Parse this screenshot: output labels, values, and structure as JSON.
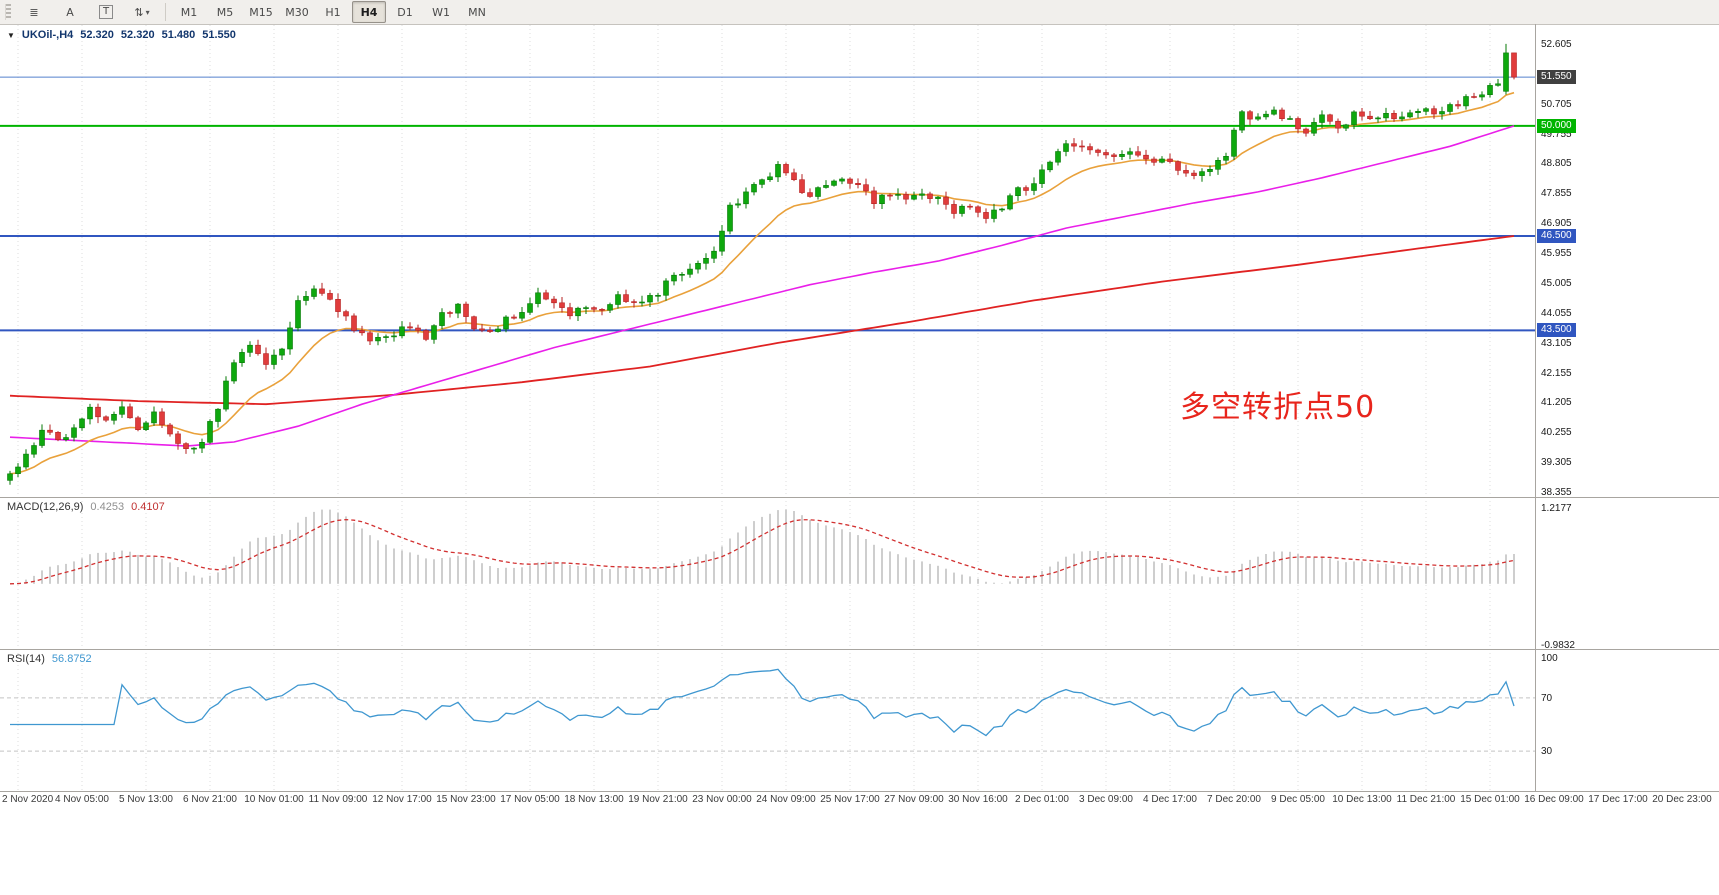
{
  "toolbar": {
    "tools": [
      {
        "id": "chart-windows",
        "glyph": "≣"
      },
      {
        "id": "arrow-tool",
        "glyph": "A"
      },
      {
        "id": "text-tool",
        "glyph": "T",
        "boxed": true
      },
      {
        "id": "indicators-menu",
        "glyph": "⇅",
        "caret": "▾"
      }
    ],
    "timeframes": [
      {
        "label": "M1",
        "active": false
      },
      {
        "label": "M5",
        "active": false
      },
      {
        "label": "M15",
        "active": false
      },
      {
        "label": "M30",
        "active": false
      },
      {
        "label": "H1",
        "active": false
      },
      {
        "label": "H4",
        "active": true
      },
      {
        "label": "D1",
        "active": false
      },
      {
        "label": "W1",
        "active": false
      },
      {
        "label": "MN",
        "active": false
      }
    ]
  },
  "quote_header": {
    "collapse_icon": "▼",
    "symbol": "UKOil-,H4",
    "open": "52.320",
    "high": "52.320",
    "low": "51.480",
    "close": "51.550"
  },
  "annotation": {
    "text": "多空转折点50",
    "color": "#e8251c"
  },
  "price_scale": {
    "gridline_labels": [
      "52.605",
      "50.705",
      "49.755",
      "48.805",
      "47.855",
      "46.905",
      "45.955",
      "45.005",
      "44.055",
      "43.105",
      "42.155",
      "41.205",
      "40.255",
      "39.305",
      "38.355"
    ],
    "price_box": {
      "name": "price-box-current",
      "value": "51.550",
      "price": 51.55,
      "bg": "#404040"
    },
    "level_boxes": [
      {
        "name": "level-box-50",
        "value": "50.000",
        "price": 50.0,
        "bg": "#00b400"
      },
      {
        "name": "level-box-46-5",
        "value": "46.500",
        "price": 46.5,
        "bg": "#3056c0"
      },
      {
        "name": "level-box-43-5",
        "value": "43.500",
        "price": 43.5,
        "bg": "#3056c0"
      }
    ]
  },
  "chart_data": {
    "type": "candlestick",
    "symbol": "UKOil-",
    "timeframe": "H4",
    "title": "UKOil-,H4 52.320 52.320 51.480 51.550",
    "last_quote": {
      "open": 52.32,
      "high": 52.32,
      "low": 51.48,
      "close": 51.55
    },
    "y_axis": {
      "min": 38.2,
      "max": 53.24,
      "grid_step": 0.95,
      "gridlines": [
        52.605,
        51.655,
        50.705,
        49.755,
        48.805,
        47.855,
        46.905,
        45.955,
        45.005,
        44.055,
        43.105,
        42.155,
        41.205,
        40.255,
        39.305,
        38.355
      ]
    },
    "levels": [
      {
        "price": 51.55,
        "color": "#5580cd",
        "role": "current-price-line"
      },
      {
        "price": 50.0,
        "color": "#00b400",
        "role": "horizontal-line"
      },
      {
        "price": 46.5,
        "color": "#3056c0",
        "role": "horizontal-line"
      },
      {
        "price": 43.5,
        "color": "#3056c0",
        "role": "horizontal-line"
      }
    ],
    "bars_total": 189,
    "price_anchors": [
      [
        0,
        38.85
      ],
      [
        2,
        39.55
      ],
      [
        4,
        40.25
      ],
      [
        6,
        40.0
      ],
      [
        8,
        40.45
      ],
      [
        10,
        40.95
      ],
      [
        12,
        40.55
      ],
      [
        14,
        41.05
      ],
      [
        16,
        40.35
      ],
      [
        18,
        40.95
      ],
      [
        20,
        40.15
      ],
      [
        22,
        39.6
      ],
      [
        24,
        39.85
      ],
      [
        26,
        41.1
      ],
      [
        28,
        42.45
      ],
      [
        30,
        43.0
      ],
      [
        32,
        42.45
      ],
      [
        34,
        42.95
      ],
      [
        36,
        44.35
      ],
      [
        38,
        44.95
      ],
      [
        40,
        44.55
      ],
      [
        42,
        43.85
      ],
      [
        44,
        43.35
      ],
      [
        46,
        43.15
      ],
      [
        48,
        43.45
      ],
      [
        50,
        43.6
      ],
      [
        52,
        43.3
      ],
      [
        54,
        43.95
      ],
      [
        56,
        44.25
      ],
      [
        58,
        43.55
      ],
      [
        60,
        43.45
      ],
      [
        62,
        43.85
      ],
      [
        64,
        44.15
      ],
      [
        66,
        44.75
      ],
      [
        68,
        44.25
      ],
      [
        70,
        43.95
      ],
      [
        72,
        44.3
      ],
      [
        74,
        44.15
      ],
      [
        76,
        44.55
      ],
      [
        78,
        44.35
      ],
      [
        80,
        44.55
      ],
      [
        82,
        44.95
      ],
      [
        84,
        45.35
      ],
      [
        86,
        45.65
      ],
      [
        88,
        46.05
      ],
      [
        90,
        47.35
      ],
      [
        92,
        47.85
      ],
      [
        94,
        48.25
      ],
      [
        96,
        48.75
      ],
      [
        98,
        48.25
      ],
      [
        100,
        47.7
      ],
      [
        102,
        48.1
      ],
      [
        104,
        48.4
      ],
      [
        106,
        48.0
      ],
      [
        108,
        47.65
      ],
      [
        110,
        47.85
      ],
      [
        112,
        47.6
      ],
      [
        114,
        47.9
      ],
      [
        116,
        47.7
      ],
      [
        118,
        47.3
      ],
      [
        120,
        47.55
      ],
      [
        122,
        46.95
      ],
      [
        124,
        47.45
      ],
      [
        126,
        47.95
      ],
      [
        128,
        48.15
      ],
      [
        130,
        48.9
      ],
      [
        132,
        49.55
      ],
      [
        134,
        49.25
      ],
      [
        136,
        49.05
      ],
      [
        138,
        48.95
      ],
      [
        140,
        49.25
      ],
      [
        142,
        48.85
      ],
      [
        144,
        49.05
      ],
      [
        146,
        48.65
      ],
      [
        148,
        48.35
      ],
      [
        150,
        48.65
      ],
      [
        152,
        49.05
      ],
      [
        154,
        50.45
      ],
      [
        156,
        50.15
      ],
      [
        158,
        50.45
      ],
      [
        160,
        50.1
      ],
      [
        162,
        49.85
      ],
      [
        164,
        50.25
      ],
      [
        166,
        49.95
      ],
      [
        168,
        50.35
      ],
      [
        170,
        50.15
      ],
      [
        172,
        50.45
      ],
      [
        174,
        50.25
      ],
      [
        176,
        50.55
      ],
      [
        178,
        50.3
      ],
      [
        180,
        50.55
      ],
      [
        182,
        50.85
      ],
      [
        184,
        51.05
      ],
      [
        186,
        51.3
      ],
      [
        187,
        51.05
      ],
      [
        188,
        51.55
      ]
    ],
    "moving_averages": {
      "fast": {
        "type": "ema",
        "period": 14,
        "color": "#e9a13b"
      },
      "medium": {
        "color": "#e91fe9",
        "anchors": [
          [
            0,
            40.1
          ],
          [
            8,
            40.0
          ],
          [
            16,
            39.9
          ],
          [
            22,
            39.82
          ],
          [
            28,
            39.95
          ],
          [
            36,
            40.45
          ],
          [
            44,
            41.15
          ],
          [
            52,
            41.75
          ],
          [
            60,
            42.35
          ],
          [
            68,
            42.95
          ],
          [
            76,
            43.45
          ],
          [
            84,
            43.95
          ],
          [
            92,
            44.45
          ],
          [
            100,
            44.95
          ],
          [
            108,
            45.35
          ],
          [
            116,
            45.7
          ],
          [
            124,
            46.2
          ],
          [
            132,
            46.75
          ],
          [
            140,
            47.15
          ],
          [
            148,
            47.55
          ],
          [
            156,
            47.9
          ],
          [
            164,
            48.35
          ],
          [
            172,
            48.85
          ],
          [
            180,
            49.35
          ],
          [
            188,
            50.0
          ]
        ]
      },
      "slow": {
        "color": "#e02222",
        "anchors": [
          [
            0,
            41.42
          ],
          [
            16,
            41.25
          ],
          [
            32,
            41.15
          ],
          [
            48,
            41.45
          ],
          [
            64,
            41.85
          ],
          [
            80,
            42.35
          ],
          [
            96,
            43.1
          ],
          [
            112,
            43.75
          ],
          [
            128,
            44.45
          ],
          [
            144,
            45.05
          ],
          [
            160,
            45.55
          ],
          [
            176,
            46.1
          ],
          [
            188,
            46.5
          ]
        ]
      }
    },
    "macd": {
      "label": "MACD(12,26,9)",
      "values": [
        0.4253,
        0.4107
      ],
      "values_text": [
        "0.4253",
        "0.4107"
      ],
      "fast": 12,
      "slow": 26,
      "signal": 9,
      "scale_max": 1.2177,
      "scale_min": -0.9832,
      "scale_labels": [
        "1.2177",
        "-0.9832"
      ]
    },
    "rsi": {
      "label": "RSI(14)",
      "period": 14,
      "value": 56.8752,
      "value_text": "56.8752",
      "levels": [
        100,
        70,
        30
      ],
      "scale_labels": [
        "100",
        "70",
        "30"
      ]
    },
    "x_axis_labels": [
      "2 Nov 2020",
      "4 Nov 05:00",
      "5 Nov 13:00",
      "6 Nov 21:00",
      "10 Nov 01:00",
      "11 Nov 09:00",
      "12 Nov 17:00",
      "15 Nov 23:00",
      "17 Nov 05:00",
      "18 Nov 13:00",
      "19 Nov 21:00",
      "23 Nov 00:00",
      "24 Nov 09:00",
      "25 Nov 17:00",
      "27 Nov 09:00",
      "30 Nov 16:00",
      "2 Dec 01:00",
      "3 Dec 09:00",
      "4 Dec 17:00",
      "7 Dec 20:00",
      "9 Dec 05:00",
      "10 Dec 13:00",
      "11 Dec 21:00",
      "15 Dec 01:00",
      "16 Dec 09:00",
      "17 Dec 17:00",
      "20 Dec 23:00"
    ]
  },
  "colors": {
    "candle_up": "#0ea80e",
    "candle_up_border": "#067806",
    "candle_down": "#e03c3c",
    "candle_down_border": "#b52222",
    "ma_fast": "#e9a13b",
    "ma_medium": "#e91fe9",
    "ma_slow": "#e02222",
    "level_green": "#00b400",
    "level_blue": "#3056c0",
    "price_line": "#5580cd",
    "macd_hist": "#bdbdbd",
    "macd_signal": "#d23030",
    "rsi_line": "#3f97d0",
    "rsi_level": "#c4c4c4",
    "grid": "#dcdcdc",
    "panel_border": "#a8a5a0",
    "annotation": "#e8251c"
  }
}
